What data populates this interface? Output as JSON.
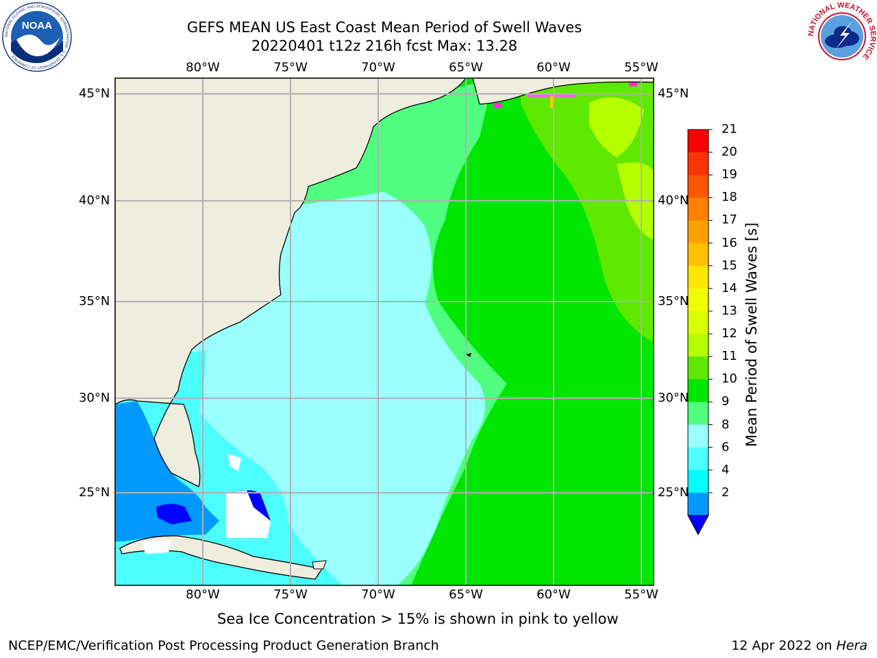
{
  "title": {
    "line1": "GEFS MEAN US East Coast Mean Period of Swell Waves",
    "line2": "20220401 t12z 216h fcst   Max: 13.28"
  },
  "map": {
    "lon_labels_top": [
      "80°W",
      "75°W",
      "70°W",
      "65°W",
      "60°W",
      "55°W"
    ],
    "lon_labels_bottom": [
      "80°W",
      "75°W",
      "70°W",
      "65°W",
      "60°W",
      "55°W"
    ],
    "lat_labels_left": [
      "45°N",
      "40°N",
      "35°N",
      "30°N",
      "25°N"
    ],
    "lat_labels_right": [
      "45°N",
      "40°N",
      "35°N",
      "30°N",
      "25°N"
    ],
    "land_color": "#efedde",
    "grid_color": "#b0b0b0"
  },
  "colorbar": {
    "label": "Mean Period of Swell Waves [s]",
    "ticks": [
      "21",
      "20",
      "19",
      "18",
      "17",
      "16",
      "15",
      "14",
      "13",
      "12",
      "11",
      "10",
      "9",
      "8",
      "6",
      "4",
      "2"
    ],
    "colors_top_to_bottom": [
      "#ff0000",
      "#ff3300",
      "#ff5500",
      "#ff8000",
      "#ffa000",
      "#ffc000",
      "#ffe600",
      "#f0ff00",
      "#d8ff00",
      "#b4ff00",
      "#5fe800",
      "#00e600",
      "#50ff80",
      "#99ffff",
      "#4cffff",
      "#00ffff",
      "#0099ff"
    ],
    "extend_color": "#0000ff"
  },
  "annotation": "Sea Ice Concentration > 15% is shown in pink to yellow",
  "footer": {
    "left": "NCEP/EMC/Verification Post Processing Product Generation Branch",
    "right_date": "12 Apr 2022 on ",
    "right_machine": "Hera"
  },
  "logos": {
    "noaa_text": "NOAA",
    "noaa_ring_text": "NATIONAL OCEANIC AND ATMOSPHERIC ADMINISTRATION · U.S. DEPARTMENT OF COMMERCE",
    "nws_ring_text": "NATIONAL WEATHER SERVICE"
  }
}
